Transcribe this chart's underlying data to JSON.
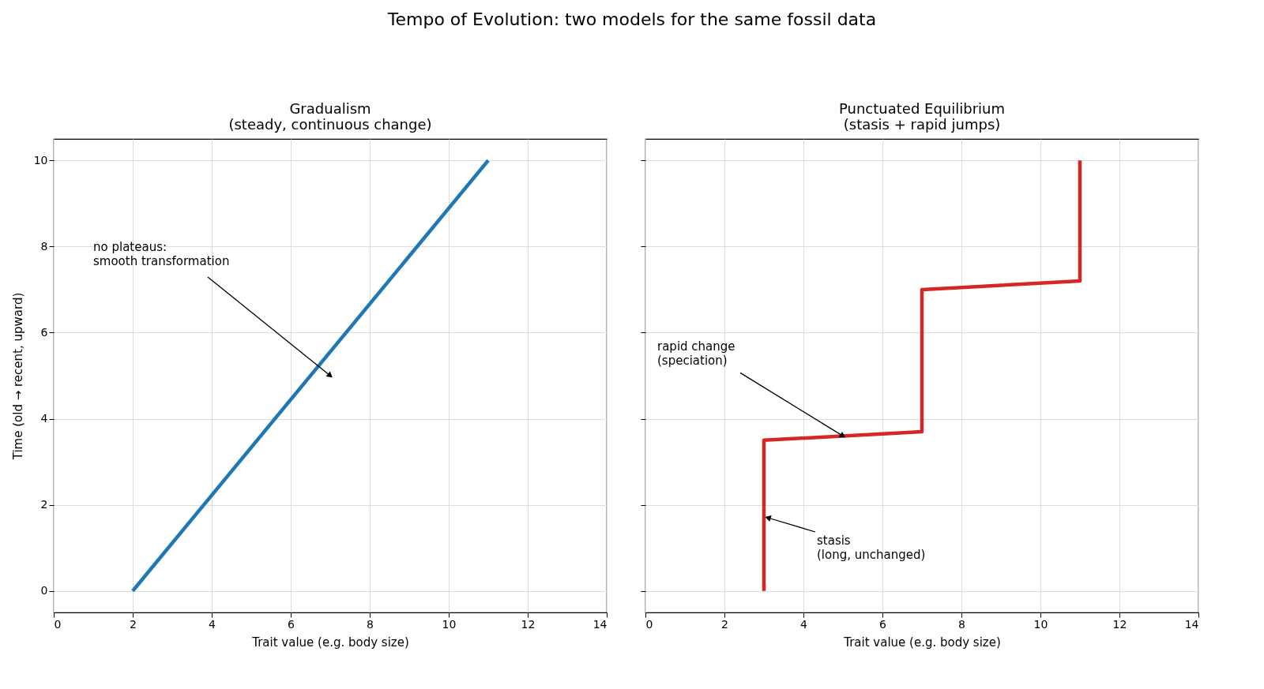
{
  "chart_data": [
    {
      "type": "other",
      "title": "Tempo of Evolution: two models for the same fossil data"
    },
    {
      "type": "line",
      "title": "Gradualism\n(steady, continuous change)",
      "xlabel": "Trait value (e.g. body size)",
      "ylabel": "Time (old  →  recent, upward)",
      "xlim": [
        0,
        14
      ],
      "ylim": [
        -0.5,
        10.5
      ],
      "xticks": [
        0,
        2,
        4,
        6,
        8,
        10,
        12,
        14
      ],
      "yticks": [
        0,
        2,
        4,
        6,
        8,
        10
      ],
      "grid": true,
      "series": [
        {
          "color": "#1f77b4",
          "x": [
            2,
            11
          ],
          "values": [
            0,
            10
          ]
        }
      ],
      "annotations": [
        "no plateaus:\nsmooth transformation"
      ]
    },
    {
      "type": "line",
      "title": "Punctuated Equilibrium\n(stasis + rapid jumps)",
      "xlabel": "Trait value (e.g. body size)",
      "xlim": [
        0,
        14
      ],
      "ylim": [
        -0.5,
        10.5
      ],
      "xticks": [
        0,
        2,
        4,
        6,
        8,
        10,
        12,
        14
      ],
      "yticks": [
        0,
        2,
        4,
        6,
        8,
        10
      ],
      "grid": true,
      "tick_labels": "x",
      "series": [
        {
          "color": "#d62728",
          "x": [
            3,
            3,
            7,
            7,
            11,
            11
          ],
          "values": [
            0,
            3.5,
            3.7,
            7.0,
            7.2,
            10
          ]
        }
      ],
      "annotations": [
        {
          "text": "rapid change\n(speciation)",
          "x": 5,
          "y": 3.6
        },
        {
          "text": "stasis\n(long, unchanged)",
          "x": 3.1,
          "y": 1.7
        }
      ]
    }
  ]
}
